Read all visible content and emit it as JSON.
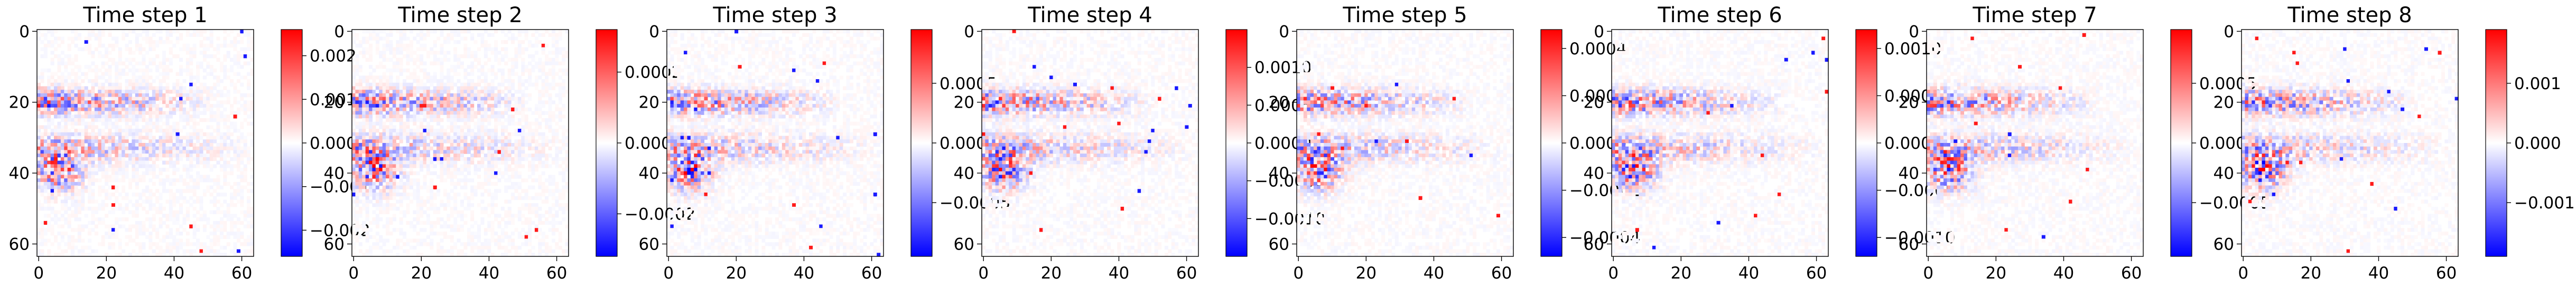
{
  "chart_data": [
    {
      "type": "heatmap",
      "title": "Time step 1",
      "x_ticks": [
        0,
        20,
        40,
        60
      ],
      "y_ticks": [
        0,
        20,
        40,
        60
      ],
      "xlim": [
        0,
        63
      ],
      "ylim": [
        63,
        0
      ],
      "colormap": "bwr",
      "clim": [
        -0.0026,
        0.0026
      ],
      "colorbar_ticks": [
        -0.002,
        -0.001,
        0.0,
        0.001,
        0.002
      ],
      "colorbar_labels": [
        "−0.002",
        "−0.001",
        "0.000",
        "0.001",
        "0.002"
      ],
      "seed": 11
    },
    {
      "type": "heatmap",
      "title": "Time step 2",
      "x_ticks": [
        0,
        20,
        40,
        60
      ],
      "y_ticks": [
        0,
        20,
        40,
        60
      ],
      "xlim": [
        0,
        63
      ],
      "ylim": [
        63,
        0
      ],
      "colormap": "bwr",
      "clim": [
        -0.00032,
        0.00032
      ],
      "colorbar_ticks": [
        -0.0002,
        0.0,
        0.0002
      ],
      "colorbar_labels": [
        "−0.0002",
        "0.0000",
        "0.0002"
      ],
      "seed": 23
    },
    {
      "type": "heatmap",
      "title": "Time step 3",
      "x_ticks": [
        0,
        20,
        40,
        60
      ],
      "y_ticks": [
        0,
        20,
        40,
        60
      ],
      "xlim": [
        0,
        63
      ],
      "ylim": [
        63,
        0
      ],
      "colormap": "bwr",
      "clim": [
        -0.00095,
        0.00095
      ],
      "colorbar_ticks": [
        -0.0005,
        0.0,
        0.0005
      ],
      "colorbar_labels": [
        "−0.0005",
        "0.0000",
        "0.0005"
      ],
      "seed": 37
    },
    {
      "type": "heatmap",
      "title": "Time step 4",
      "x_ticks": [
        0,
        20,
        40,
        60
      ],
      "y_ticks": [
        0,
        20,
        40,
        60
      ],
      "xlim": [
        0,
        63
      ],
      "ylim": [
        63,
        0
      ],
      "colormap": "bwr",
      "clim": [
        -0.0015,
        0.0015
      ],
      "colorbar_ticks": [
        -0.001,
        -0.0005,
        0.0,
        0.0005,
        0.001
      ],
      "colorbar_labels": [
        "−0.0010",
        "−0.0005",
        "0.0000",
        "0.0005",
        "0.0010"
      ],
      "seed": 41
    },
    {
      "type": "heatmap",
      "title": "Time step 5",
      "x_ticks": [
        0,
        20,
        40,
        60
      ],
      "y_ticks": [
        0,
        20,
        40,
        60
      ],
      "xlim": [
        0,
        63
      ],
      "ylim": [
        63,
        0
      ],
      "colormap": "bwr",
      "clim": [
        -0.00048,
        0.00048
      ],
      "colorbar_ticks": [
        -0.0004,
        -0.0002,
        0.0,
        0.0002,
        0.0004
      ],
      "colorbar_labels": [
        "−0.0004",
        "−0.0002",
        "0.0000",
        "0.0002",
        "0.0004"
      ],
      "seed": 53
    },
    {
      "type": "heatmap",
      "title": "Time step 6",
      "x_ticks": [
        0,
        20,
        40,
        60
      ],
      "y_ticks": [
        0,
        20,
        40,
        60
      ],
      "xlim": [
        0,
        63
      ],
      "ylim": [
        63,
        0
      ],
      "colormap": "bwr",
      "clim": [
        -0.0012,
        0.0012
      ],
      "colorbar_ticks": [
        -0.001,
        -0.0005,
        0.0,
        0.0005,
        0.001
      ],
      "colorbar_labels": [
        "−0.0010",
        "−0.0005",
        "0.0000",
        "0.0005",
        "0.0010"
      ],
      "seed": 67
    },
    {
      "type": "heatmap",
      "title": "Time step 7",
      "x_ticks": [
        0,
        20,
        40,
        60
      ],
      "y_ticks": [
        0,
        20,
        40,
        60
      ],
      "xlim": [
        0,
        63
      ],
      "ylim": [
        63,
        0
      ],
      "colormap": "bwr",
      "clim": [
        -0.00095,
        0.00095
      ],
      "colorbar_ticks": [
        -0.0005,
        0.0,
        0.0005
      ],
      "colorbar_labels": [
        "−0.0005",
        "0.0000",
        "0.0005"
      ],
      "seed": 71
    },
    {
      "type": "heatmap",
      "title": "Time step 8",
      "x_ticks": [
        0,
        20,
        40,
        60
      ],
      "y_ticks": [
        0,
        20,
        40,
        60
      ],
      "xlim": [
        0,
        63
      ],
      "ylim": [
        63,
        0
      ],
      "colormap": "bwr",
      "clim": [
        -0.0019,
        0.0019
      ],
      "colorbar_ticks": [
        -0.001,
        0.0,
        0.001
      ],
      "colorbar_labels": [
        "−0.001",
        "0.000",
        "0.001"
      ],
      "seed": 89
    }
  ]
}
